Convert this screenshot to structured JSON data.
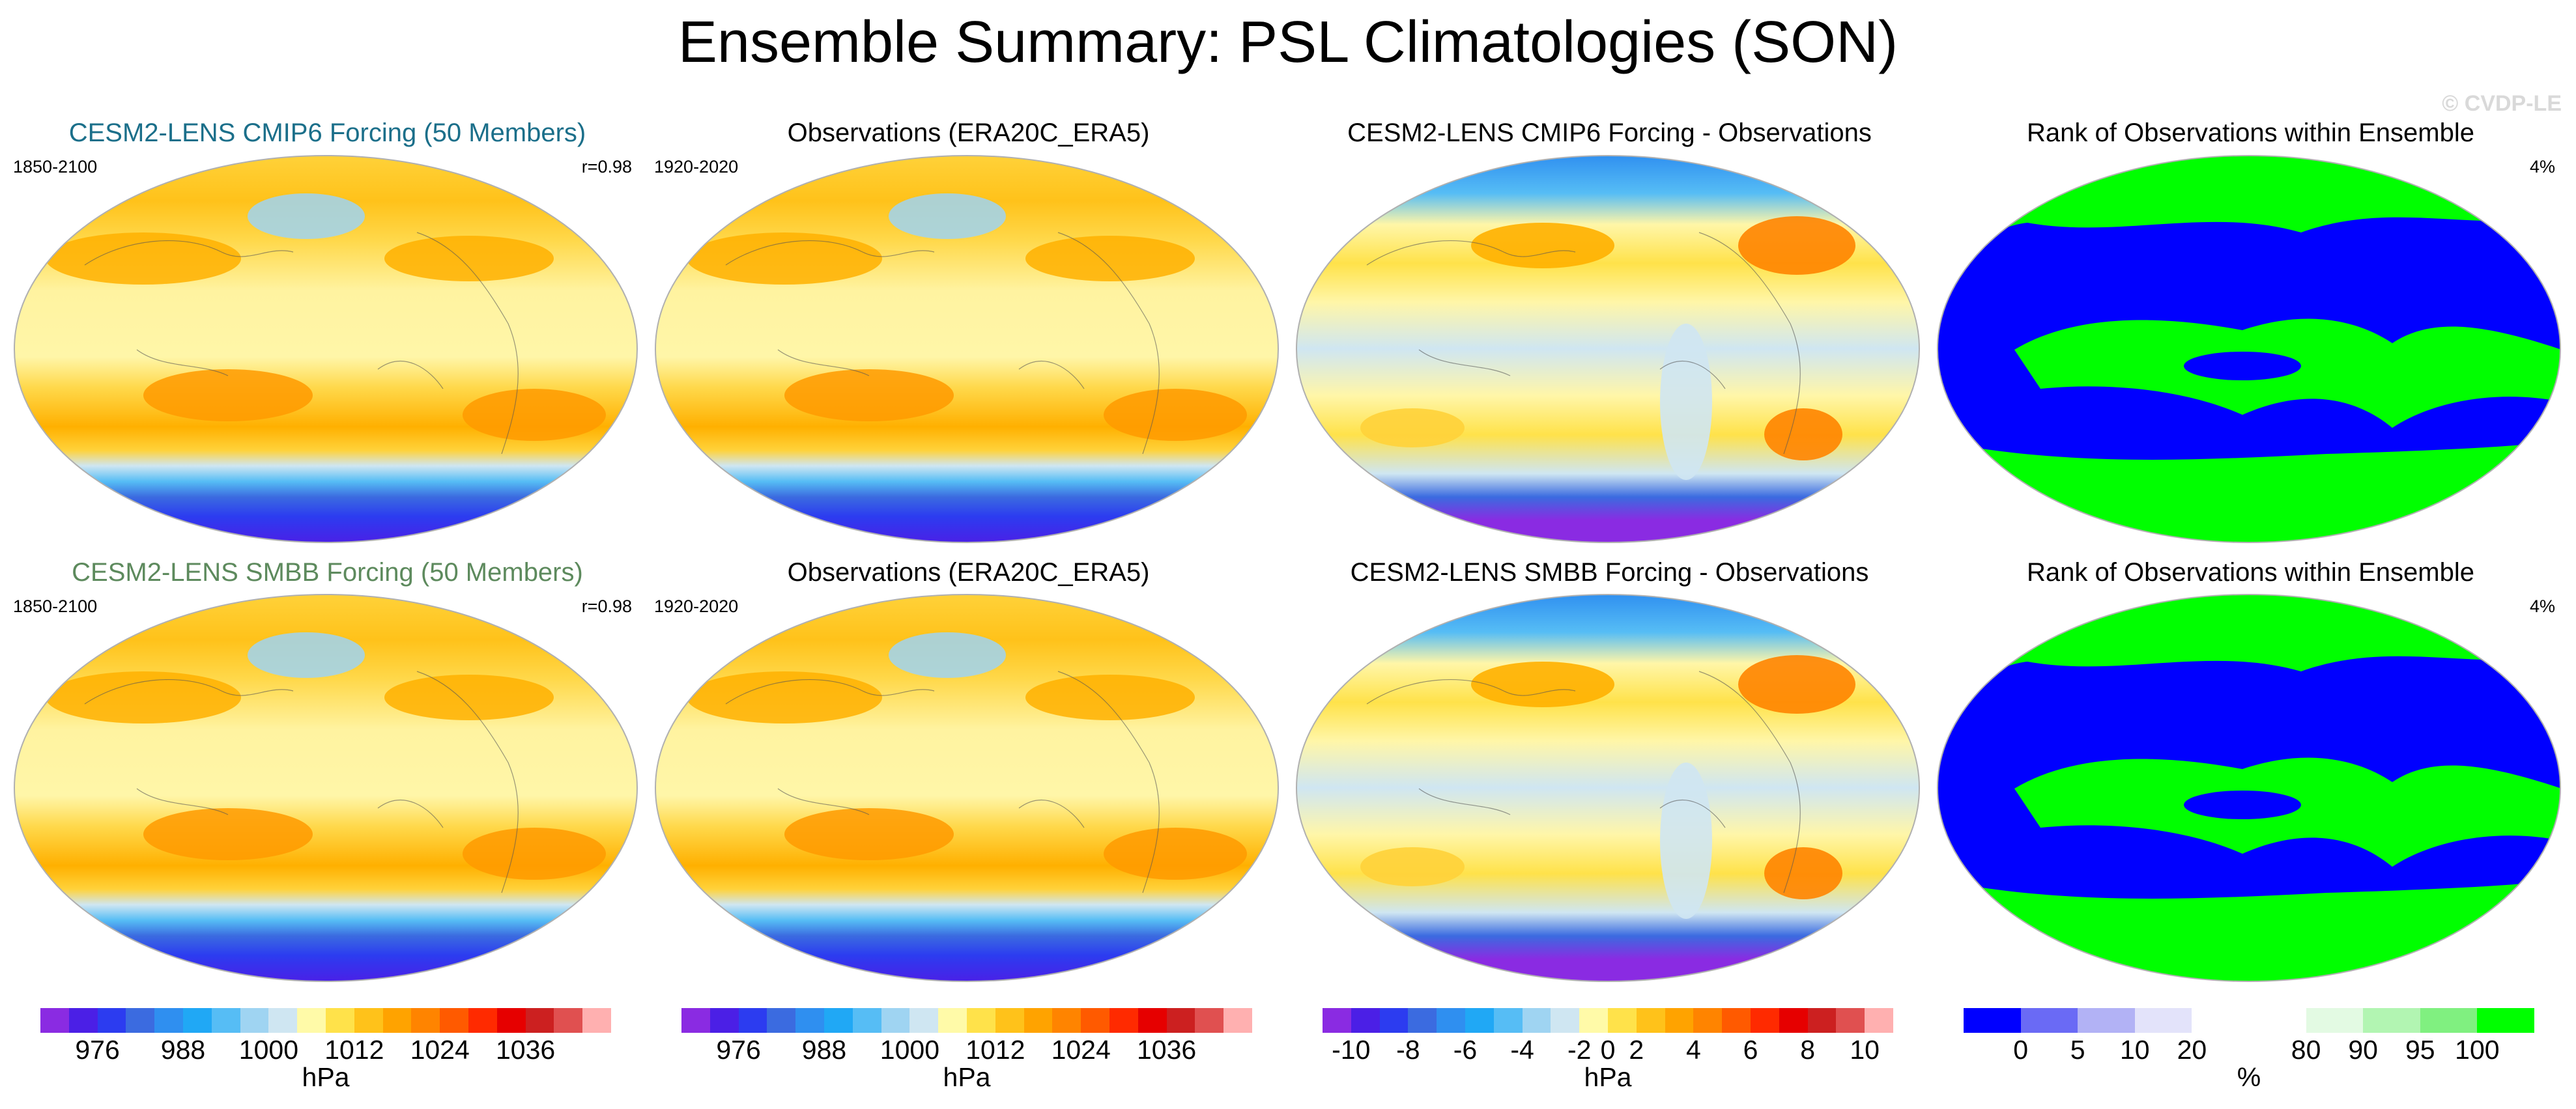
{
  "title": "Ensemble Summary: PSL Climatologies (SON)",
  "copyright": "© CVDP-LE",
  "rows": [
    {
      "panels": [
        {
          "title": "CESM2-LENS CMIP6 Forcing (50 Members)",
          "title_color": "#1b6f8a",
          "left": "1850-2100",
          "right": "r=0.98",
          "map": "psl"
        },
        {
          "title": "Observations (ERA20C_ERA5)",
          "title_color": "#000000",
          "left": "1920-2020",
          "right": "",
          "map": "psl-obs"
        },
        {
          "title": "CESM2-LENS CMIP6 Forcing - Observations",
          "title_color": "#000000",
          "left": "",
          "right": "",
          "map": "diff"
        },
        {
          "title": "Rank of Observations within Ensemble",
          "title_color": "#000000",
          "left": "",
          "right": "4%",
          "map": "rank"
        }
      ]
    },
    {
      "panels": [
        {
          "title": "CESM2-LENS SMBB Forcing (50 Members)",
          "title_color": "#5d8a5d",
          "left": "1850-2100",
          "right": "r=0.98",
          "map": "psl"
        },
        {
          "title": "Observations (ERA20C_ERA5)",
          "title_color": "#000000",
          "left": "1920-2020",
          "right": "",
          "map": "psl-obs"
        },
        {
          "title": "CESM2-LENS SMBB Forcing - Observations",
          "title_color": "#000000",
          "left": "",
          "right": "",
          "map": "diff"
        },
        {
          "title": "Rank of Observations within Ensemble",
          "title_color": "#000000",
          "left": "",
          "right": "4%",
          "map": "rank"
        }
      ]
    }
  ],
  "colorbars": [
    {
      "unit": "hPa",
      "colors": [
        "#8a2be2",
        "#4b1fe6",
        "#2c3cf0",
        "#3b6be0",
        "#2f8ff0",
        "#20a8f5",
        "#56bdf5",
        "#9fd4f2",
        "#cfe6f2",
        "#fffaa8",
        "#ffe24a",
        "#ffc21a",
        "#ffa300",
        "#ff8400",
        "#ff5a00",
        "#ff2a00",
        "#e60000",
        "#cc2020",
        "#e05050",
        "#ffb0b0"
      ],
      "ticks": [
        {
          "label": "976",
          "pos": 2
        },
        {
          "label": "988",
          "pos": 5
        },
        {
          "label": "1000",
          "pos": 8
        },
        {
          "label": "1012",
          "pos": 11
        },
        {
          "label": "1024",
          "pos": 14
        },
        {
          "label": "1036",
          "pos": 17
        }
      ]
    },
    {
      "unit": "hPa",
      "colors": [
        "#8a2be2",
        "#4b1fe6",
        "#2c3cf0",
        "#3b6be0",
        "#2f8ff0",
        "#20a8f5",
        "#56bdf5",
        "#9fd4f2",
        "#cfe6f2",
        "#fffaa8",
        "#ffe24a",
        "#ffc21a",
        "#ffa300",
        "#ff8400",
        "#ff5a00",
        "#ff2a00",
        "#e60000",
        "#cc2020",
        "#e05050",
        "#ffb0b0"
      ],
      "ticks": [
        {
          "label": "976",
          "pos": 2
        },
        {
          "label": "988",
          "pos": 5
        },
        {
          "label": "1000",
          "pos": 8
        },
        {
          "label": "1012",
          "pos": 11
        },
        {
          "label": "1024",
          "pos": 14
        },
        {
          "label": "1036",
          "pos": 17
        }
      ]
    },
    {
      "unit": "hPa",
      "colors": [
        "#8a2be2",
        "#4b1fe6",
        "#2c3cf0",
        "#3b6be0",
        "#2f8ff0",
        "#20a8f5",
        "#56bdf5",
        "#9fd4f2",
        "#cfe6f2",
        "#fffaa8",
        "#ffe24a",
        "#ffc21a",
        "#ffa300",
        "#ff8400",
        "#ff5a00",
        "#ff2a00",
        "#e60000",
        "#cc2020",
        "#e05050",
        "#ffb0b0"
      ],
      "ticks": [
        {
          "label": "-10",
          "pos": 1
        },
        {
          "label": "-8",
          "pos": 3
        },
        {
          "label": "-6",
          "pos": 5
        },
        {
          "label": "-4",
          "pos": 7
        },
        {
          "label": "-2",
          "pos": 9
        },
        {
          "label": "0",
          "pos": 10
        },
        {
          "label": "2",
          "pos": 11
        },
        {
          "label": "4",
          "pos": 13
        },
        {
          "label": "6",
          "pos": 15
        },
        {
          "label": "8",
          "pos": 17
        },
        {
          "label": "10",
          "pos": 19
        }
      ]
    },
    {
      "unit": "%",
      "colors": [
        "#0000ff",
        "#6a6af5",
        "#b2b2f5",
        "#e3e3fa",
        "#ffffff",
        "#ffffff",
        "#e3fae3",
        "#b2f5b2",
        "#80f080",
        "#00ff00"
      ],
      "ticks": [
        {
          "label": "0",
          "pos": 1
        },
        {
          "label": "5",
          "pos": 2
        },
        {
          "label": "10",
          "pos": 3
        },
        {
          "label": "20",
          "pos": 4
        },
        {
          "label": "80",
          "pos": 6
        },
        {
          "label": "90",
          "pos": 7
        },
        {
          "label": "95",
          "pos": 8
        },
        {
          "label": "100",
          "pos": 9
        }
      ]
    }
  ]
}
